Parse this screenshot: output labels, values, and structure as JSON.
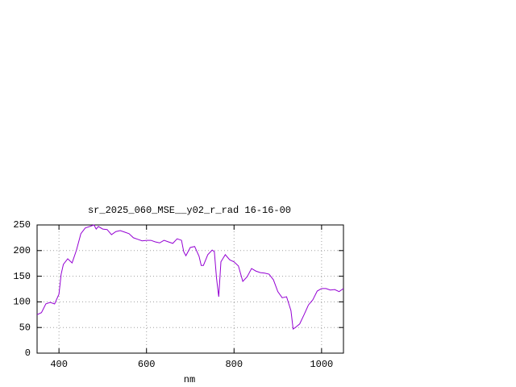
{
  "chart_data": {
    "type": "line",
    "title": "sr_2025_060_MSE__y02_r_rad 16-16-00",
    "x_label": "nm",
    "xlim": [
      350,
      1050
    ],
    "ylim": [
      0,
      250
    ],
    "xticks": [
      400,
      600,
      800,
      1000
    ],
    "yticks": [
      0,
      50,
      100,
      150,
      200,
      250
    ],
    "grid": true,
    "x": [
      350,
      360,
      370,
      380,
      390,
      400,
      405,
      410,
      420,
      430,
      440,
      450,
      460,
      470,
      480,
      485,
      490,
      500,
      510,
      520,
      530,
      540,
      550,
      560,
      570,
      580,
      590,
      600,
      610,
      620,
      630,
      640,
      650,
      660,
      670,
      680,
      685,
      690,
      700,
      710,
      720,
      725,
      730,
      740,
      750,
      755,
      760,
      765,
      770,
      780,
      790,
      800,
      810,
      820,
      830,
      840,
      850,
      860,
      870,
      880,
      890,
      900,
      910,
      920,
      930,
      935,
      940,
      950,
      960,
      970,
      980,
      990,
      1000,
      1010,
      1020,
      1030,
      1040,
      1050
    ],
    "series": [
      {
        "color": "#9400d3",
        "values": [
          75,
          79,
          96,
          99,
          96,
          115,
          154,
          173,
          184,
          176,
          201,
          233,
          244,
          247,
          250,
          242,
          247,
          242,
          241,
          231,
          237,
          239,
          236,
          233,
          225,
          222,
          219,
          220,
          220,
          217,
          215,
          220,
          217,
          214,
          223,
          220,
          198,
          190,
          206,
          208,
          189,
          171,
          171,
          192,
          201,
          198,
          146,
          110,
          178,
          192,
          182,
          178,
          170,
          140,
          149,
          165,
          160,
          157,
          156,
          154,
          143,
          120,
          108,
          110,
          83,
          47,
          50,
          57,
          75,
          94,
          104,
          121,
          126,
          126,
          123,
          124,
          120,
          126
        ]
      }
    ]
  }
}
